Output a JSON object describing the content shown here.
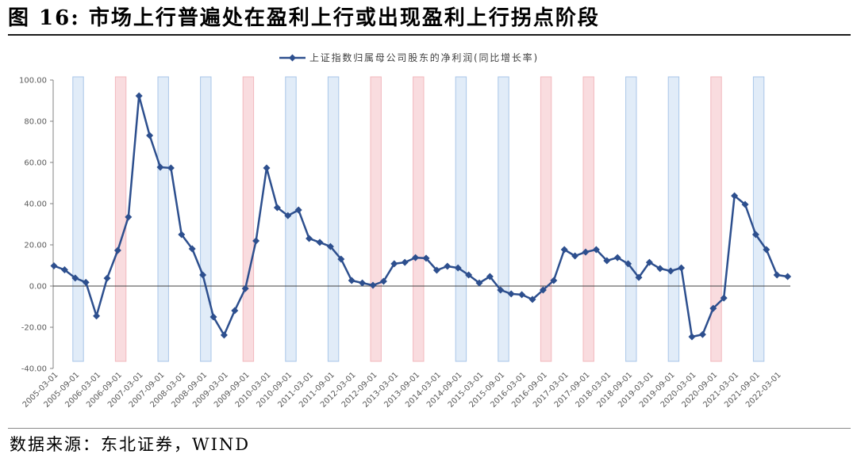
{
  "chart_data": {
    "type": "line",
    "title": "图 16: 市场上行普遍处在盈利上行或出现盈利上行拐点阶段",
    "legend": "top-center",
    "grid": false,
    "ylim": [
      -40,
      100
    ],
    "yticks": [
      "100.00",
      "80.00",
      "60.00",
      "40.00",
      "20.00",
      "0.00",
      "-20.00",
      "-40.00"
    ],
    "x": [
      "2005-03-01",
      "2005-06-01",
      "2005-09-01",
      "2005-12-01",
      "2006-03-01",
      "2006-06-01",
      "2006-09-01",
      "2006-12-01",
      "2007-03-01",
      "2007-06-01",
      "2007-09-01",
      "2007-12-01",
      "2008-03-01",
      "2008-06-01",
      "2008-09-01",
      "2008-12-01",
      "2009-03-01",
      "2009-06-01",
      "2009-09-01",
      "2009-12-01",
      "2010-03-01",
      "2010-06-01",
      "2010-09-01",
      "2010-12-01",
      "2011-03-01",
      "2011-06-01",
      "2011-09-01",
      "2011-12-01",
      "2012-03-01",
      "2012-06-01",
      "2012-09-01",
      "2012-12-01",
      "2013-03-01",
      "2013-06-01",
      "2013-09-01",
      "2013-12-01",
      "2014-03-01",
      "2014-06-01",
      "2014-09-01",
      "2014-12-01",
      "2015-03-01",
      "2015-06-01",
      "2015-09-01",
      "2015-12-01",
      "2016-03-01",
      "2016-06-01",
      "2016-09-01",
      "2016-12-01",
      "2017-03-01",
      "2017-06-01",
      "2017-09-01",
      "2017-12-01",
      "2018-03-01",
      "2018-06-01",
      "2018-09-01",
      "2018-12-01",
      "2019-03-01",
      "2019-06-01",
      "2019-09-01",
      "2019-12-01",
      "2020-03-01",
      "2020-06-01",
      "2020-09-01",
      "2020-12-01",
      "2021-03-01",
      "2021-06-01",
      "2021-09-01",
      "2021-12-01",
      "2022-03-01",
      "2022-06-01"
    ],
    "xticks": [
      "2005-03-01",
      "2005-09-01",
      "2006-03-01",
      "2006-09-01",
      "2007-03-01",
      "2007-09-01",
      "2008-03-01",
      "2008-09-01",
      "2009-03-01",
      "2009-09-01",
      "2010-03-01",
      "2010-09-01",
      "2011-03-01",
      "2011-09-01",
      "2012-03-01",
      "2012-09-01",
      "2013-03-01",
      "2013-09-01",
      "2014-03-01",
      "2014-09-01",
      "2015-03-01",
      "2015-09-01",
      "2016-03-01",
      "2016-09-01",
      "2017-03-01",
      "2017-09-01",
      "2018-03-01",
      "2018-09-01",
      "2019-03-01",
      "2019-09-01",
      "2020-03-01",
      "2020-09-01",
      "2021-03-01",
      "2021-09-01",
      "2022-03-01"
    ],
    "series": [
      {
        "name": "上证指数归属母公司股东的净利润(同比增长率)",
        "color": "#2d4f8e",
        "marker": "diamond",
        "values": [
          9.8,
          7.9,
          3.9,
          1.8,
          -14.5,
          3.8,
          17.3,
          33.5,
          92.3,
          73.1,
          57.7,
          57.3,
          25.0,
          18.1,
          5.4,
          -15.0,
          -23.8,
          -11.9,
          -1.2,
          21.9,
          57.3,
          38.1,
          34.2,
          36.9,
          23.1,
          21.2,
          19.2,
          13.1,
          2.7,
          1.5,
          0.4,
          2.3,
          10.8,
          11.5,
          13.8,
          13.5,
          7.7,
          9.6,
          8.8,
          5.4,
          1.5,
          4.6,
          -1.9,
          -3.8,
          -4.2,
          -6.5,
          -1.9,
          2.7,
          17.7,
          14.6,
          16.5,
          17.7,
          12.3,
          13.8,
          10.8,
          4.2,
          11.5,
          8.5,
          7.3,
          8.8,
          -24.6,
          -23.5,
          -10.8,
          -5.8,
          43.8,
          39.6,
          25.0,
          17.7,
          5.4,
          4.6
        ]
      }
    ],
    "shaded_periods": {
      "colors": {
        "blue": {
          "fill": "#e1ecf8",
          "stroke": "#a9c6e8"
        },
        "pink": {
          "fill": "#f9dcdf",
          "stroke": "#f2b8be"
        }
      },
      "items": [
        {
          "x": "2005-09-01",
          "color": "blue"
        },
        {
          "x": "2006-09-01",
          "color": "pink"
        },
        {
          "x": "2007-09-01",
          "color": "blue"
        },
        {
          "x": "2008-09-01",
          "color": "blue"
        },
        {
          "x": "2009-09-01",
          "color": "pink"
        },
        {
          "x": "2010-09-01",
          "color": "blue"
        },
        {
          "x": "2011-09-01",
          "color": "blue"
        },
        {
          "x": "2012-09-01",
          "color": "pink"
        },
        {
          "x": "2013-09-01",
          "color": "pink"
        },
        {
          "x": "2014-09-01",
          "color": "blue"
        },
        {
          "x": "2015-09-01",
          "color": "blue"
        },
        {
          "x": "2016-09-01",
          "color": "pink"
        },
        {
          "x": "2017-09-01",
          "color": "pink"
        },
        {
          "x": "2018-09-01",
          "color": "blue"
        },
        {
          "x": "2019-09-01",
          "color": "blue"
        },
        {
          "x": "2020-09-01",
          "color": "pink"
        },
        {
          "x": "2021-09-01",
          "color": "blue"
        }
      ]
    }
  },
  "footer": {
    "source": "数据来源：东北证券，WIND"
  }
}
